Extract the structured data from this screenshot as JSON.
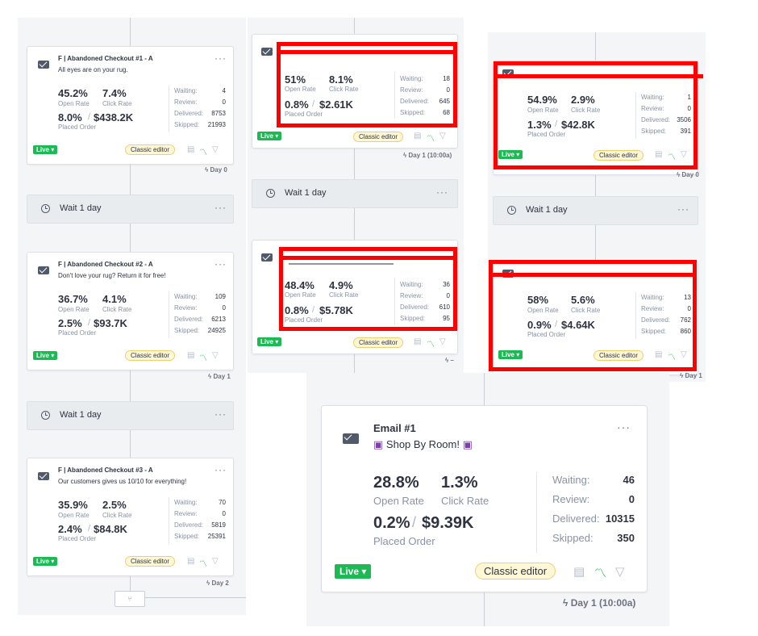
{
  "panel_left": {
    "cards": [
      {
        "name": "F | Abandoned Checkout #1 - A",
        "subject": "All eyes are on your rug.",
        "open": "45.2%",
        "click": "7.4%",
        "placed": "8.0%",
        "revenue": "$438.2K",
        "waiting": "4",
        "review": "0",
        "delivered": "8753",
        "skipped": "21993",
        "day": "Day 0"
      },
      {
        "name": "F | Abandoned Checkout #2 - A",
        "subject": "Don't love your rug? Return it for free!",
        "open": "36.7%",
        "click": "4.1%",
        "placed": "2.5%",
        "revenue": "$93.7K",
        "waiting": "109",
        "review": "0",
        "delivered": "6213",
        "skipped": "24925",
        "day": "Day 1"
      },
      {
        "name": "F | Abandoned Checkout #3 - A",
        "subject": "Our customers gives us 10/10 for everything!",
        "open": "35.9%",
        "click": "2.5%",
        "placed": "2.4%",
        "revenue": "$84.8K",
        "waiting": "70",
        "review": "0",
        "delivered": "5819",
        "skipped": "25391",
        "day": "Day 2"
      }
    ]
  },
  "panel_mid": {
    "cards": [
      {
        "open": "51%",
        "click": "8.1%",
        "placed": "0.8%",
        "revenue": "$2.61K",
        "waiting": "18",
        "review": "0",
        "delivered": "645",
        "skipped": "68",
        "day": "Day 1 (10:00a)"
      },
      {
        "open": "48.4%",
        "click": "4.9%",
        "placed": "0.8%",
        "revenue": "$5.78K",
        "waiting": "36",
        "review": "0",
        "delivered": "610",
        "skipped": "95",
        "day": "–"
      }
    ]
  },
  "panel_right": {
    "cards": [
      {
        "open": "54.9%",
        "click": "2.9%",
        "placed": "1.3%",
        "revenue": "$42.8K",
        "waiting": "1",
        "review": "0",
        "delivered": "3506",
        "skipped": "391",
        "day": "Day 0"
      },
      {
        "open": "58%",
        "click": "5.6%",
        "placed": "0.9%",
        "revenue": "$4.64K",
        "waiting": "13",
        "review": "0",
        "delivered": "762",
        "skipped": "860",
        "day": "Day 1"
      }
    ]
  },
  "zoom_card": {
    "title": "Email #1",
    "subject": "Shop By Room!",
    "open": "28.8%",
    "click": "1.3%",
    "placed": "0.2%",
    "revenue": "$9.39K",
    "waiting": "46",
    "review": "0",
    "delivered": "10315",
    "skipped": "350",
    "day": "Day 1 (10:00a)"
  },
  "labels": {
    "open_rate": "Open Rate",
    "click_rate": "Click Rate",
    "placed_order": "Placed Order",
    "waiting": "Waiting:",
    "review": "Review:",
    "delivered": "Delivered:",
    "skipped": "Skipped:",
    "live": "Live ▾",
    "classic_editor": "Classic editor",
    "wait": "Wait 1 day",
    "more": "···",
    "slash": "/",
    "bolt": "ϟ"
  }
}
